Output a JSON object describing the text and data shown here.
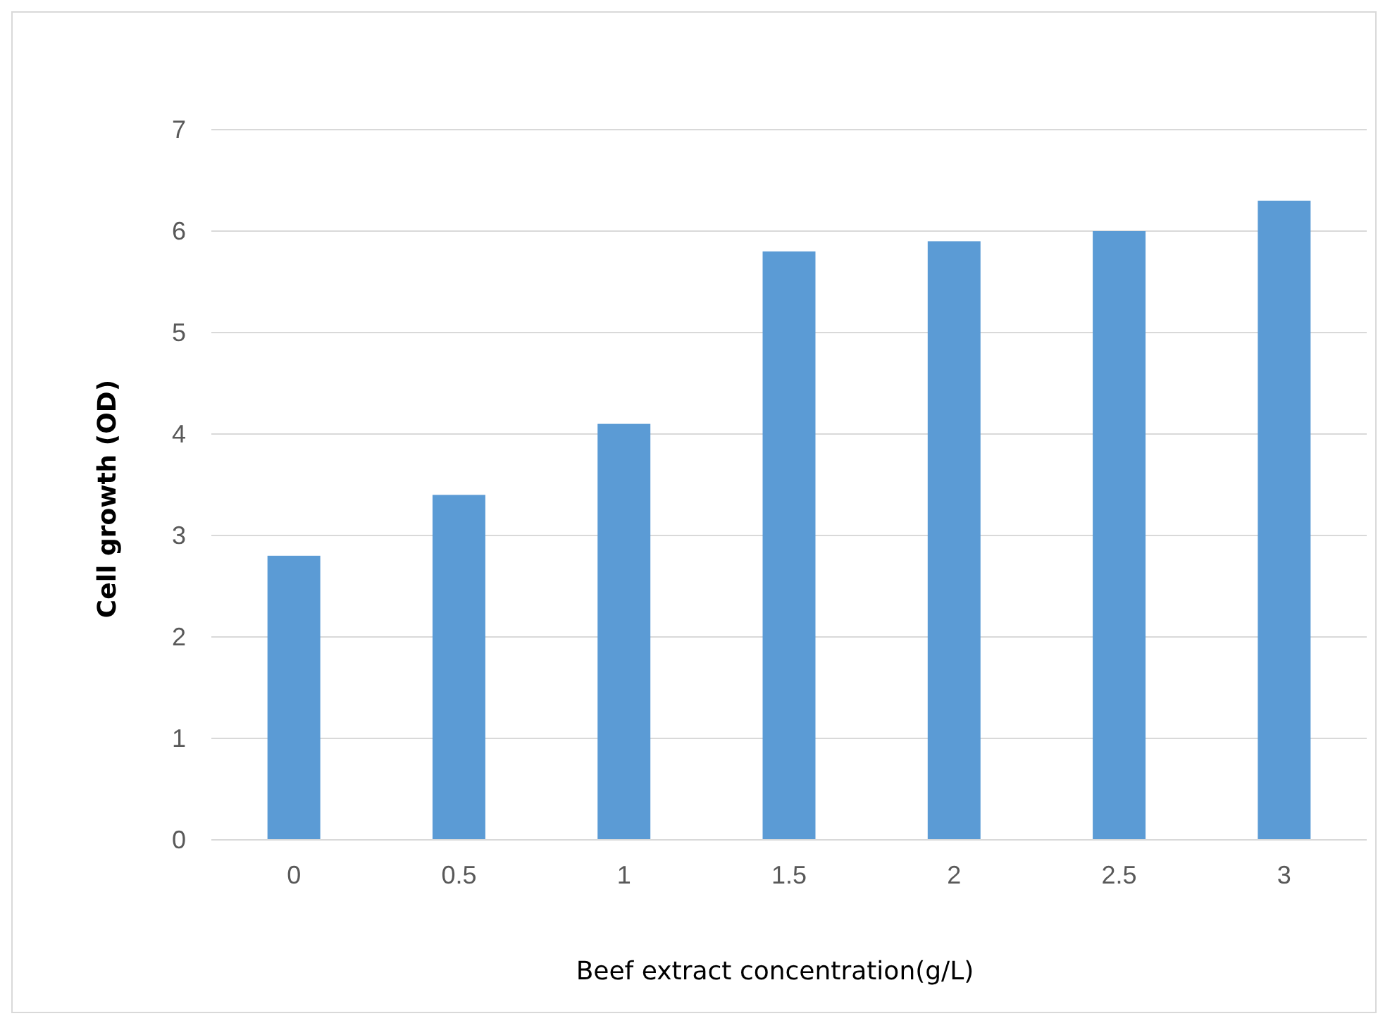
{
  "chart_data": {
    "type": "bar",
    "xlabel": "Beef extract concentration(g/L)",
    "ylabel": "Cell growth (OD)",
    "categories": [
      "0",
      "0.5",
      "1",
      "1.5",
      "2",
      "2.5",
      "3"
    ],
    "series": [
      {
        "color": "#5b9bd5",
        "values": [
          2.8,
          3.4,
          4.1,
          5.8,
          5.9,
          6.0,
          6.3
        ]
      }
    ],
    "ylim": [
      0,
      7
    ],
    "yticks": [
      0,
      1,
      2,
      3,
      4,
      5,
      6,
      7
    ],
    "grid": "y"
  }
}
